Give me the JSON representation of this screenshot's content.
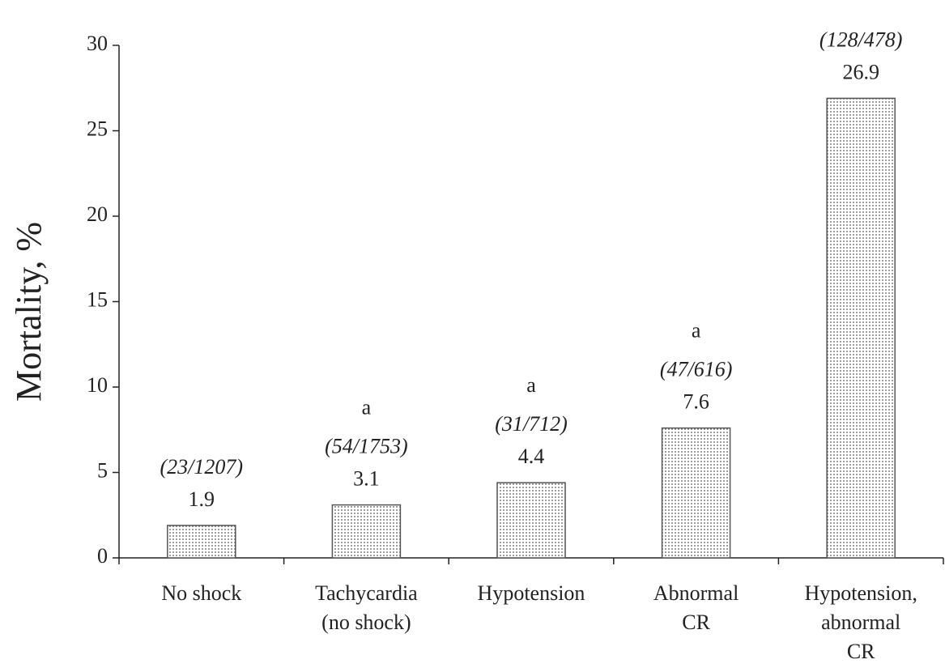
{
  "chart_data": {
    "type": "bar",
    "ylabel": "Mortality, %",
    "categories": [
      [
        "No shock"
      ],
      [
        "Tachycardia",
        "(no shock)"
      ],
      [
        "Hypotension"
      ],
      [
        "Abnormal",
        "CR"
      ],
      [
        "Hypotension,",
        "abnormal",
        "CR"
      ]
    ],
    "values": [
      1.9,
      3.1,
      4.4,
      7.6,
      26.9
    ],
    "counts": [
      "(23/1207)",
      "(54/1753)",
      "(31/712)",
      "(47/616)",
      "(128/478)"
    ],
    "significance": [
      null,
      "a",
      "a",
      "a",
      null
    ],
    "color": "#555555",
    "ylim": [
      0,
      30
    ],
    "yticks": [
      0,
      5,
      10,
      15,
      20,
      25,
      30
    ],
    "grid": false
  }
}
